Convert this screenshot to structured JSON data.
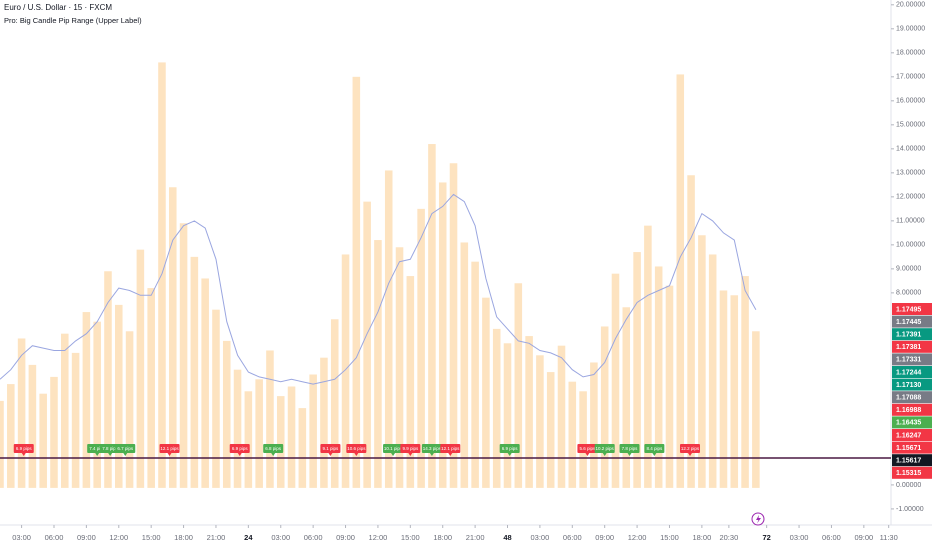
{
  "chart_data": {
    "type": "bar",
    "title": "Euro / U.S. Dollar · 15 · FXCM",
    "subtitle": "Pro: Big Candle Pip Range (Upper Label)",
    "x": [
      1,
      2,
      3,
      4,
      5,
      6,
      7,
      8,
      9,
      10,
      11,
      12,
      13,
      14,
      15,
      16,
      17,
      18,
      19,
      20,
      21,
      22,
      23,
      24,
      25,
      26,
      27,
      28,
      29,
      30,
      31,
      32,
      33,
      34,
      35,
      36,
      37,
      38,
      39,
      40,
      41,
      42,
      43,
      44,
      45,
      46,
      47,
      48,
      49,
      50,
      51,
      52,
      53,
      54,
      55,
      56,
      57,
      58,
      59,
      60,
      61,
      62,
      63,
      64,
      65,
      66,
      67,
      68,
      69,
      70,
      71
    ],
    "series": [
      {
        "type": "bar",
        "color": "#fde3c0",
        "values": [
          3.5,
          4.2,
          6.1,
          5.0,
          3.8,
          4.5,
          6.3,
          5.5,
          7.2,
          6.8,
          8.9,
          7.5,
          6.4,
          9.8,
          8.2,
          17.6,
          12.4,
          10.9,
          9.5,
          8.6,
          7.3,
          6.0,
          4.8,
          3.9,
          4.4,
          5.6,
          3.7,
          4.1,
          3.2,
          4.6,
          5.3,
          6.9,
          9.6,
          17.0,
          11.8,
          10.2,
          13.1,
          9.9,
          8.7,
          11.5,
          14.2,
          12.6,
          13.4,
          10.1,
          9.3,
          7.8,
          6.5,
          5.9,
          8.4,
          6.2,
          5.4,
          4.7,
          5.8,
          4.3,
          3.9,
          5.1,
          6.6,
          8.8,
          7.4,
          9.7,
          10.8,
          9.1,
          8.3,
          17.1,
          12.9,
          10.4,
          9.6,
          8.1,
          7.9,
          8.7,
          6.4
        ]
      },
      {
        "type": "line",
        "color": "#9aa6e0",
        "values": [
          4.4,
          4.8,
          5.4,
          5.8,
          5.7,
          5.6,
          5.6,
          6.0,
          6.3,
          6.8,
          7.6,
          8.2,
          8.1,
          7.9,
          7.9,
          8.8,
          10.2,
          10.8,
          11.0,
          10.7,
          9.4,
          6.8,
          5.4,
          4.7,
          4.5,
          4.4,
          4.3,
          4.4,
          4.3,
          4.2,
          4.3,
          4.4,
          4.8,
          5.3,
          6.3,
          7.2,
          8.4,
          9.3,
          9.4,
          10.3,
          11.3,
          11.6,
          12.1,
          11.8,
          10.8,
          8.6,
          7.0,
          6.5,
          6.0,
          5.9,
          5.6,
          5.5,
          5.3,
          4.8,
          4.5,
          4.6,
          5.1,
          6.1,
          6.9,
          7.6,
          7.9,
          8.1,
          8.3,
          9.5,
          10.3,
          11.3,
          11.0,
          10.5,
          10.2,
          8.1,
          7.3
        ]
      }
    ],
    "xlim": [
      1,
      83.7
    ],
    "ylim": [
      -1.67,
      20.2
    ],
    "xticks": [
      {
        "value": 3,
        "label": "03:00"
      },
      {
        "value": 6,
        "label": "06:00"
      },
      {
        "value": 9,
        "label": "09:00"
      },
      {
        "value": 12,
        "label": "12:00"
      },
      {
        "value": 15,
        "label": "15:00"
      },
      {
        "value": 18,
        "label": "18:00"
      },
      {
        "value": 21,
        "label": "21:00"
      },
      24,
      {
        "value": 27,
        "label": "03:00"
      },
      {
        "value": 30,
        "label": "06:00"
      },
      {
        "value": 33,
        "label": "09:00"
      },
      {
        "value": 36,
        "label": "12:00"
      },
      {
        "value": 39,
        "label": "15:00"
      },
      {
        "value": 42,
        "label": "18:00"
      },
      {
        "value": 45,
        "label": "21:00"
      },
      48,
      {
        "value": 51,
        "label": "03:00"
      },
      {
        "value": 54,
        "label": "06:00"
      },
      {
        "value": 57,
        "label": "09:00"
      },
      {
        "value": 60,
        "label": "12:00"
      },
      {
        "value": 63,
        "label": "15:00"
      },
      {
        "value": 66,
        "label": "18:00"
      },
      {
        "value": 68.5,
        "label": "20:30"
      },
      72,
      {
        "value": 75,
        "label": "03:00"
      },
      {
        "value": 78,
        "label": "06:00"
      },
      {
        "value": 81,
        "label": "09:00"
      },
      {
        "value": 83.3,
        "label": "11:30"
      }
    ],
    "xtick_days": [
      24,
      48,
      72
    ],
    "yticks": [
      {
        "value": 20,
        "label": "20.00000"
      },
      {
        "value": 19,
        "label": "19.00000"
      },
      {
        "value": 18,
        "label": "18.00000"
      },
      {
        "value": 17,
        "label": "17.00000"
      },
      {
        "value": 16,
        "label": "16.00000"
      },
      {
        "value": 15,
        "label": "15.00000"
      },
      {
        "value": 14,
        "label": "14.00000"
      },
      {
        "value": 13,
        "label": "13.00000"
      },
      {
        "value": 12,
        "label": "12.00000"
      },
      {
        "value": 11,
        "label": "11.00000"
      },
      {
        "value": 10,
        "label": "10.00000"
      },
      {
        "value": 9,
        "label": "9.00000"
      },
      {
        "value": 8,
        "label": "8.00000"
      },
      {
        "value": 0,
        "label": "0.00000"
      },
      {
        "value": -1,
        "label": "-1.00000"
      }
    ],
    "pip_labels": [
      {
        "x": 3.2,
        "text": "6.9 pips",
        "color": "#f23645"
      },
      {
        "x": 10.0,
        "text": "7.4 pips",
        "color": "#4caf50"
      },
      {
        "x": 11.2,
        "text": "7.8 pips",
        "color": "#4caf50"
      },
      {
        "x": 12.6,
        "text": "6.7 pips",
        "color": "#4caf50"
      },
      {
        "x": 16.7,
        "text": "12.1 pips",
        "color": "#f23645"
      },
      {
        "x": 23.2,
        "text": "6.9 pips",
        "color": "#f23645"
      },
      {
        "x": 26.3,
        "text": "6.8 pips",
        "color": "#4caf50"
      },
      {
        "x": 31.6,
        "text": "9.1 pips",
        "color": "#f23645"
      },
      {
        "x": 34.0,
        "text": "10.6 pips",
        "color": "#f23645"
      },
      {
        "x": 37.4,
        "text": "10.1 pips",
        "color": "#4caf50"
      },
      {
        "x": 39.0,
        "text": "9.9 pips",
        "color": "#f23645"
      },
      {
        "x": 41.0,
        "text": "14.3 pips",
        "color": "#4caf50"
      },
      {
        "x": 42.7,
        "text": "12.1 pips",
        "color": "#f23645"
      },
      {
        "x": 48.2,
        "text": "6.9 pips",
        "color": "#4caf50"
      },
      {
        "x": 55.4,
        "text": "5.6 pips",
        "color": "#f23645"
      },
      {
        "x": 57.0,
        "text": "10.2 pips",
        "color": "#4caf50"
      },
      {
        "x": 59.3,
        "text": "7.8 pips",
        "color": "#4caf50"
      },
      {
        "x": 61.6,
        "text": "8.4 pips",
        "color": "#4caf50"
      },
      {
        "x": 64.9,
        "text": "12.2 pips",
        "color": "#f23645"
      }
    ],
    "price_labels": [
      {
        "text": "1.17495",
        "color": "#f23645"
      },
      {
        "text": "1.17445",
        "color": "#787b86"
      },
      {
        "text": "1.17391",
        "color": "#089981"
      },
      {
        "text": "1.17381",
        "color": "#f23645"
      },
      {
        "text": "1.17331",
        "color": "#787b86"
      },
      {
        "text": "1.17244",
        "color": "#089981"
      },
      {
        "text": "1.17130",
        "color": "#089981"
      },
      {
        "text": "1.17088",
        "color": "#787b86"
      },
      {
        "text": "1.16988",
        "color": "#f23645"
      },
      {
        "text": "1.16435",
        "color": "#4caf50"
      },
      {
        "text": "1.16247",
        "color": "#f23645"
      },
      {
        "text": "1.15671",
        "color": "#f23645"
      },
      {
        "text": "1.15617",
        "color": "#131722"
      },
      {
        "text": "1.15315",
        "color": "#f23645"
      }
    ]
  }
}
